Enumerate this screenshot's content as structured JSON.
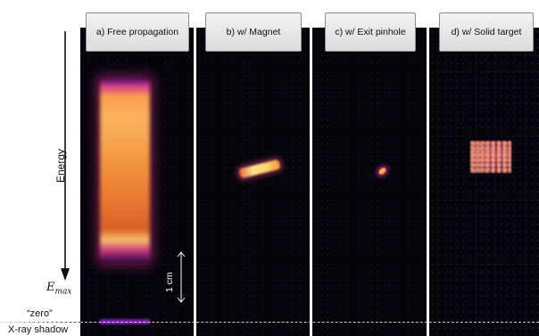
{
  "panels": [
    {
      "label": "a) Free propagation"
    },
    {
      "label": "b) w/ Magnet"
    },
    {
      "label": "c) w/ Exit pinhole"
    },
    {
      "label": "d) w/ Solid target"
    }
  ],
  "axis": {
    "energy_label": "Energy",
    "emax_symbol": "E",
    "emax_subscript": "max",
    "zero_label": "“zero”",
    "shadow_label": "X-ray shadow"
  },
  "scalebar": {
    "label": "1 cm"
  },
  "colors": {
    "panel_background": "#05040a",
    "beam_hot": "#fbb25e",
    "beam_edge": "#d43d8b",
    "shadow": "#7a1fb0"
  }
}
